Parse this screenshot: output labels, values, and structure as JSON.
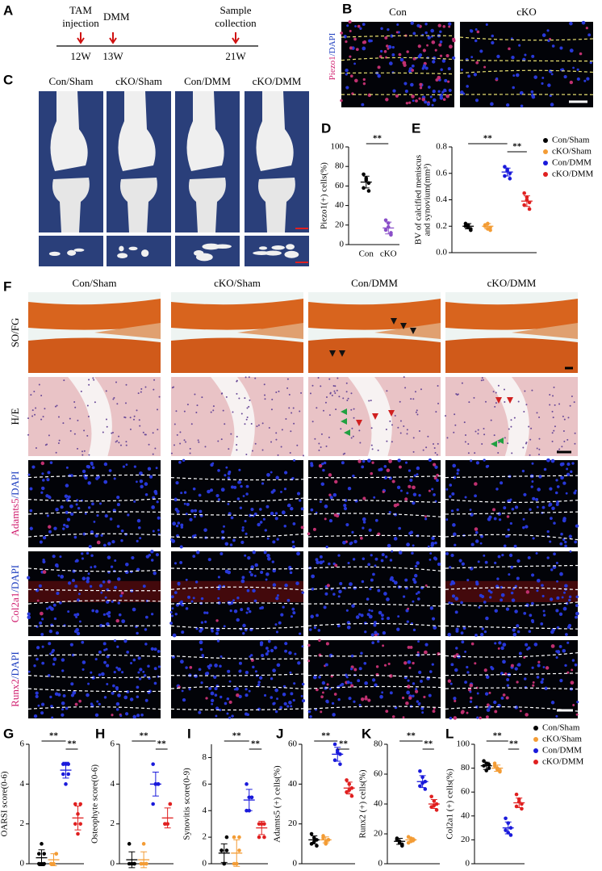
{
  "panel_labels": [
    "A",
    "B",
    "C",
    "D",
    "E",
    "F",
    "G",
    "H",
    "I",
    "J",
    "K",
    "L"
  ],
  "timeline": {
    "events": [
      {
        "label": [
          "TAM",
          "injection"
        ],
        "week": "12W"
      },
      {
        "label": [
          "DMM"
        ],
        "week": "13W"
      },
      {
        "label": [
          "Sample",
          "collection"
        ],
        "week": "21W"
      }
    ]
  },
  "panel_b": {
    "groups": [
      "Con",
      "cKO"
    ],
    "stain": {
      "marker": "Piezo1",
      "dapi": "/DAPI"
    }
  },
  "panel_c": {
    "groups": [
      "Con/Sham",
      "cKO/Sham",
      "Con/DMM",
      "cKO/DMM"
    ]
  },
  "panel_f": {
    "groups": [
      "Con/Sham",
      "cKO/Sham",
      "Con/DMM",
      "cKO/DMM"
    ],
    "rows": [
      {
        "marker": "SO/FG",
        "dapi": ""
      },
      {
        "marker": "H/E",
        "dapi": ""
      },
      {
        "marker": "Adamts5",
        "dapi": "/DAPI"
      },
      {
        "marker": "Col2a1",
        "dapi": "/DAPI"
      },
      {
        "marker": "Runx2",
        "dapi": "/DAPI"
      }
    ]
  },
  "chart_data": [
    {
      "type": "dot",
      "ylabel": [
        "Piezo1(+) cells(%)"
      ],
      "ylim": [
        0,
        100
      ],
      "yticks": [
        0,
        20,
        40,
        60,
        80,
        100
      ],
      "annotations": [
        "**"
      ],
      "category_labels": true,
      "series": [
        {
          "name": "Con",
          "color": "#000000",
          "values": [
            72,
            68,
            63,
            58,
            66,
            55
          ],
          "mean": 64,
          "sd": 6
        },
        {
          "name": "cKO",
          "color": "#8a4fc8",
          "values": [
            25,
            18,
            12,
            15,
            22,
            10
          ],
          "mean": 17,
          "sd": 6
        }
      ]
    },
    {
      "type": "dot",
      "ylabel": [
        "BV of calcified meniscus",
        "and synovium(mm³)"
      ],
      "ylim": [
        0,
        0.8
      ],
      "yticks": [
        {
          "value": 0,
          "label": "0.0"
        },
        0.2,
        0.4,
        0.6,
        0.8
      ],
      "annotations": [
        "**",
        "**"
      ],
      "legend": true,
      "series": [
        {
          "name": "Con/Sham",
          "color": "#000000",
          "values": [
            0.22,
            0.19,
            0.18,
            0.2,
            0.21,
            0.17
          ],
          "mean": 0.2,
          "sd": 0.02
        },
        {
          "name": "cKO/Sham",
          "color": "#f39c35",
          "values": [
            0.21,
            0.18,
            0.19,
            0.2,
            0.22,
            0.17
          ],
          "mean": 0.2,
          "sd": 0.02
        },
        {
          "name": "Con/DMM",
          "color": "#1a1adb",
          "values": [
            0.65,
            0.62,
            0.6,
            0.58,
            0.63,
            0.56
          ],
          "mean": 0.61,
          "sd": 0.03
        },
        {
          "name": "cKO/DMM",
          "color": "#e02020",
          "values": [
            0.45,
            0.42,
            0.38,
            0.36,
            0.4,
            0.33
          ],
          "mean": 0.39,
          "sd": 0.04
        }
      ]
    },
    {
      "type": "dot",
      "ylabel": [
        "OARSI score(0-6)"
      ],
      "ylim": [
        0,
        6
      ],
      "yticks": [
        0,
        2,
        4,
        6
      ],
      "annotations": [
        "**",
        "**"
      ],
      "series": [
        {
          "name": "Con/Sham",
          "color": "#000000",
          "values": [
            0,
            0,
            0.5,
            0.5,
            1,
            0
          ],
          "mean": 0.3,
          "sd": 0.4
        },
        {
          "name": "cKO/Sham",
          "color": "#f39c35",
          "values": [
            0,
            0,
            0.5,
            0,
            0,
            0.5
          ],
          "mean": 0.2,
          "sd": 0.3
        },
        {
          "name": "Con/DMM",
          "color": "#1a1adb",
          "values": [
            5,
            5,
            4.5,
            4.5,
            4,
            5
          ],
          "mean": 4.7,
          "sd": 0.4
        },
        {
          "name": "cKO/DMM",
          "color": "#e02020",
          "values": [
            3,
            2.5,
            2,
            2,
            1.5,
            3
          ],
          "mean": 2.3,
          "sd": 0.6
        }
      ]
    },
    {
      "type": "dot",
      "ylabel": [
        "Osteophyte score(0-6)"
      ],
      "ylim": [
        0,
        6
      ],
      "yticks": [
        0,
        2,
        4,
        6
      ],
      "annotations": [
        "**",
        "**"
      ],
      "series": [
        {
          "name": "Con/Sham",
          "color": "#000000",
          "values": [
            0,
            0,
            0,
            1,
            0,
            0
          ],
          "mean": 0.2,
          "sd": 0.4
        },
        {
          "name": "cKO/Sham",
          "color": "#f39c35",
          "values": [
            0,
            0,
            0,
            0,
            1,
            0
          ],
          "mean": 0.2,
          "sd": 0.4
        },
        {
          "name": "Con/DMM",
          "color": "#1a1adb",
          "values": [
            5,
            4,
            4,
            3,
            4,
            4
          ],
          "mean": 4,
          "sd": 0.6
        },
        {
          "name": "cKO/DMM",
          "color": "#e02020",
          "values": [
            2,
            2,
            3,
            2,
            2,
            3
          ],
          "mean": 2.3,
          "sd": 0.5
        }
      ]
    },
    {
      "type": "dot",
      "ylabel": [
        "Synovitis score(0-9)"
      ],
      "ylim": [
        0,
        9
      ],
      "yticks": [
        0,
        2,
        4,
        6,
        8
      ],
      "annotations": [
        "**",
        "**"
      ],
      "series": [
        {
          "name": "Con/Sham",
          "color": "#000000",
          "values": [
            1,
            0,
            1,
            1,
            0,
            2
          ],
          "mean": 0.8,
          "sd": 0.7
        },
        {
          "name": "cKO/Sham",
          "color": "#f39c35",
          "values": [
            0,
            0,
            1,
            2,
            0,
            2
          ],
          "mean": 0.8,
          "sd": 1
        },
        {
          "name": "Con/DMM",
          "color": "#1a1adb",
          "values": [
            6,
            5,
            5,
            4,
            4,
            5
          ],
          "mean": 4.8,
          "sd": 0.8
        },
        {
          "name": "cKO/DMM",
          "color": "#e02020",
          "values": [
            3,
            3,
            2,
            2,
            3,
            3
          ],
          "mean": 2.7,
          "sd": 0.5
        }
      ]
    },
    {
      "type": "dot",
      "ylabel": [
        "Adamts5 (+) cells(%)"
      ],
      "ylim": [
        0,
        60
      ],
      "yticks": [
        0,
        20,
        40,
        60
      ],
      "annotations": [
        "**",
        "**"
      ],
      "series": [
        {
          "name": "Con/Sham",
          "color": "#000000",
          "values": [
            15,
            11,
            12,
            10,
            13,
            9
          ],
          "mean": 12,
          "sd": 2
        },
        {
          "name": "cKO/Sham",
          "color": "#f39c35",
          "values": [
            13,
            11,
            12,
            14,
            10,
            12
          ],
          "mean": 12,
          "sd": 1.5
        },
        {
          "name": "Con/DMM",
          "color": "#1a1adb",
          "values": [
            60,
            57,
            55,
            52,
            56,
            50
          ],
          "mean": 55,
          "sd": 3.5
        },
        {
          "name": "cKO/DMM",
          "color": "#e02020",
          "values": [
            42,
            40,
            38,
            36,
            37,
            34
          ],
          "mean": 38,
          "sd": 3
        }
      ]
    },
    {
      "type": "dot",
      "ylabel": [
        "Runx2 (+) cells(%)"
      ],
      "ylim": [
        0,
        80
      ],
      "yticks": [
        0,
        20,
        40,
        60,
        80
      ],
      "annotations": [
        "**",
        "**"
      ],
      "series": [
        {
          "name": "Con/Sham",
          "color": "#000000",
          "values": [
            17,
            14,
            13,
            16,
            15,
            12
          ],
          "mean": 15,
          "sd": 2
        },
        {
          "name": "cKO/Sham",
          "color": "#f39c35",
          "values": [
            18,
            15,
            16,
            14,
            17,
            16
          ],
          "mean": 16,
          "sd": 1.4
        },
        {
          "name": "Con/DMM",
          "color": "#1a1adb",
          "values": [
            62,
            58,
            55,
            52,
            54,
            50
          ],
          "mean": 55,
          "sd": 4
        },
        {
          "name": "cKO/DMM",
          "color": "#e02020",
          "values": [
            45,
            42,
            40,
            38,
            39,
            36
          ],
          "mean": 40,
          "sd": 3
        }
      ]
    },
    {
      "type": "dot",
      "ylabel": [
        "Col2a1 (+) cells(%)"
      ],
      "ylim": [
        0,
        100
      ],
      "yticks": [
        0,
        20,
        40,
        60,
        80,
        100
      ],
      "annotations": [
        "**",
        "**"
      ],
      "legend": true,
      "series": [
        {
          "name": "Con/Sham",
          "color": "#000000",
          "values": [
            86,
            84,
            80,
            82,
            78,
            83
          ],
          "mean": 82,
          "sd": 3
        },
        {
          "name": "cKO/Sham",
          "color": "#f39c35",
          "values": [
            84,
            80,
            78,
            82,
            79,
            77
          ],
          "mean": 80,
          "sd": 2.6
        },
        {
          "name": "Con/DMM",
          "color": "#1a1adb",
          "values": [
            38,
            34,
            30,
            28,
            26,
            24
          ],
          "mean": 30,
          "sd": 5
        },
        {
          "name": "cKO/DMM",
          "color": "#e02020",
          "values": [
            58,
            54,
            50,
            48,
            52,
            46
          ],
          "mean": 51,
          "sd": 4
        }
      ]
    }
  ]
}
